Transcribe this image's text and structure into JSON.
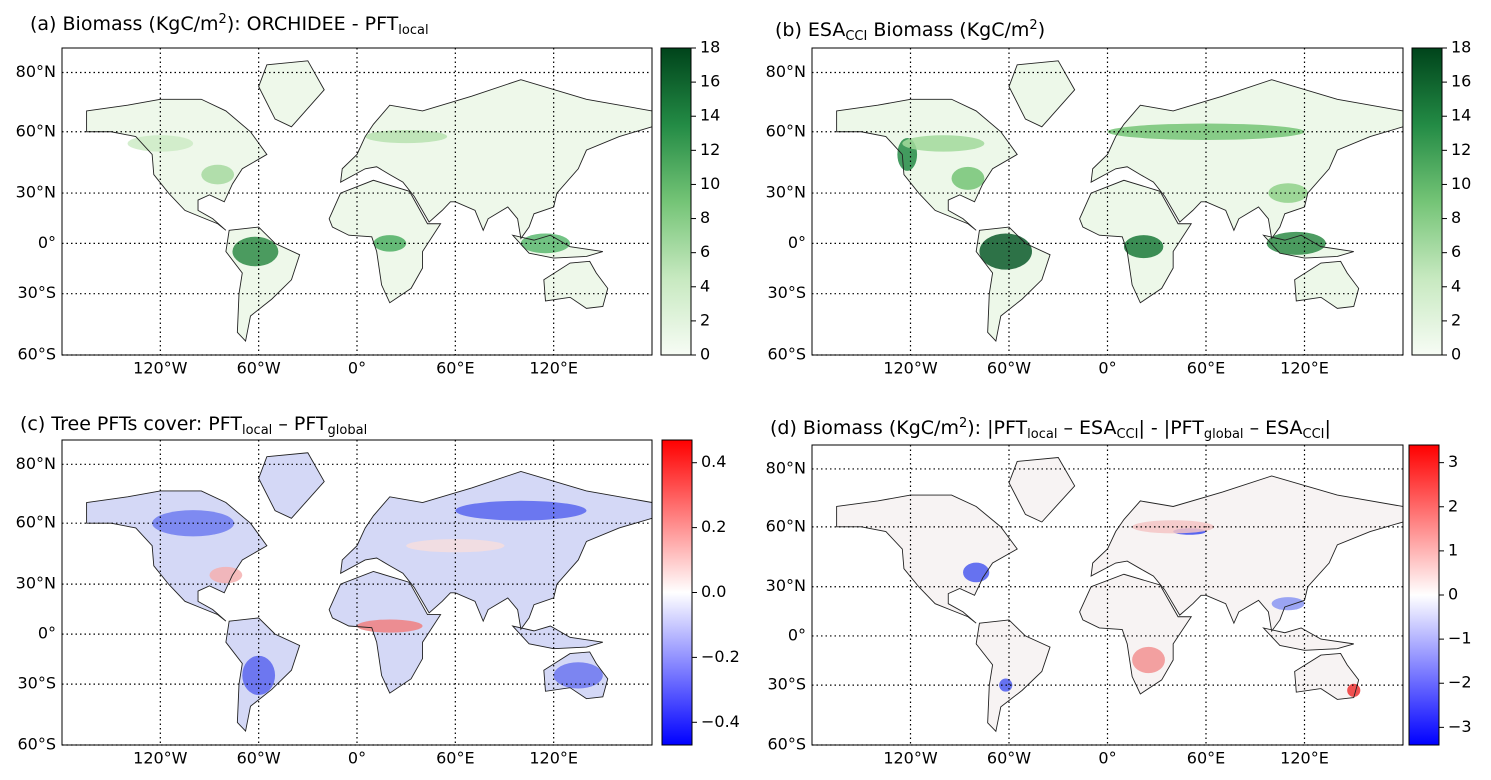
{
  "panels": [
    {
      "title": [
        "(a) Biomass (KgC/m",
        {
          "sup": "2"
        },
        "): ORCHIDEE - PFT",
        {
          "sub": "local"
        }
      ],
      "projection": "miller",
      "xlim": [
        -180,
        180
      ],
      "ylim": [
        -60,
        86
      ],
      "grid": true,
      "xticks": [
        {
          "value": -120,
          "label": "120°W"
        },
        {
          "value": -60,
          "label": "60°W"
        },
        {
          "value": 0,
          "label": "0°"
        },
        {
          "value": 60,
          "label": "60°E"
        },
        {
          "value": 120,
          "label": "120°E"
        }
      ],
      "yticks": [
        {
          "value": -60,
          "label": "60°S"
        },
        {
          "value": -30,
          "label": "30°S"
        },
        {
          "value": 0,
          "label": "0°"
        },
        {
          "value": 30,
          "label": "30°N"
        },
        {
          "value": 60,
          "label": "60°N"
        },
        {
          "value": 80,
          "label": "80°N"
        }
      ],
      "colorbar": {
        "colors": [
          "#f7fcf5",
          "#c7e9c0",
          "#74c476",
          "#238b45",
          "#00441b"
        ],
        "clim": [
          0,
          18
        ],
        "ticks": [
          0,
          2,
          4,
          6,
          8,
          10,
          12,
          14,
          16,
          18
        ]
      }
    },
    {
      "title": [
        "(b) ESA",
        {
          "sub": "CCI"
        },
        " Biomass (KgC/m",
        {
          "sup": "2"
        },
        ")"
      ],
      "projection": "miller",
      "xlim": [
        -180,
        180
      ],
      "ylim": [
        -60,
        86
      ],
      "grid": true,
      "xticks": [
        {
          "value": -120,
          "label": "120°W"
        },
        {
          "value": -60,
          "label": "60°W"
        },
        {
          "value": 0,
          "label": "0°"
        },
        {
          "value": 60,
          "label": "60°E"
        },
        {
          "value": 120,
          "label": "120°E"
        }
      ],
      "yticks": [
        {
          "value": -60,
          "label": "60°S"
        },
        {
          "value": -30,
          "label": "30°S"
        },
        {
          "value": 0,
          "label": "0°"
        },
        {
          "value": 30,
          "label": "30°N"
        },
        {
          "value": 60,
          "label": "60°N"
        },
        {
          "value": 80,
          "label": "80°N"
        }
      ],
      "colorbar": {
        "colors": [
          "#f7fcf5",
          "#c7e9c0",
          "#74c476",
          "#238b45",
          "#00441b"
        ],
        "clim": [
          0,
          18
        ],
        "ticks": [
          0,
          2,
          4,
          6,
          8,
          10,
          12,
          14,
          16,
          18
        ]
      }
    },
    {
      "title": [
        "(c) Tree PFTs cover: PFT",
        {
          "sub": "local"
        },
        " –  PFT",
        {
          "sub": "global"
        }
      ],
      "projection": "miller",
      "xlim": [
        -180,
        180
      ],
      "ylim": [
        -60,
        86
      ],
      "grid": true,
      "xticks": [
        {
          "value": -120,
          "label": "120°W"
        },
        {
          "value": -60,
          "label": "60°W"
        },
        {
          "value": 0,
          "label": "0°"
        },
        {
          "value": 60,
          "label": "60°E"
        },
        {
          "value": 120,
          "label": "120°E"
        }
      ],
      "yticks": [
        {
          "value": -60,
          "label": "60°S"
        },
        {
          "value": -30,
          "label": "30°S"
        },
        {
          "value": 0,
          "label": "0°"
        },
        {
          "value": 30,
          "label": "30°N"
        },
        {
          "value": 60,
          "label": "60°N"
        },
        {
          "value": 80,
          "label": "80°N"
        }
      ],
      "colorbar": {
        "colors": [
          "#0000ff",
          "#ffffff",
          "#ff0000"
        ],
        "clim": [
          -0.47,
          0.47
        ],
        "ticks": [
          {
            "value": -0.4,
            "label": "−0.4"
          },
          {
            "value": -0.2,
            "label": "−0.2"
          },
          {
            "value": 0,
            "label": "0.0"
          },
          0.2,
          0.4
        ]
      }
    },
    {
      "title": [
        "(d) Biomass (KgC/m",
        {
          "sup": "2"
        },
        "): |PFT",
        {
          "sub": "local"
        },
        " – ESA",
        {
          "sub": "CCI"
        },
        "| - |PFT",
        {
          "sub": "global"
        },
        " – ESA",
        {
          "sub": "CCI"
        },
        "|"
      ],
      "projection": "miller",
      "xlim": [
        -180,
        180
      ],
      "ylim": [
        -60,
        86
      ],
      "grid": true,
      "xticks": [
        {
          "value": -120,
          "label": "120°W"
        },
        {
          "value": -60,
          "label": "60°W"
        },
        {
          "value": 0,
          "label": "0°"
        },
        {
          "value": 60,
          "label": "60°E"
        },
        {
          "value": 120,
          "label": "120°E"
        }
      ],
      "yticks": [
        {
          "value": -60,
          "label": "60°S"
        },
        {
          "value": -30,
          "label": "30°S"
        },
        {
          "value": 0,
          "label": "0°"
        },
        {
          "value": 30,
          "label": "30°N"
        },
        {
          "value": 60,
          "label": "60°N"
        },
        {
          "value": 80,
          "label": "80°N"
        }
      ],
      "colorbar": {
        "colors": [
          "#0000ff",
          "#ffffff",
          "#ff0000"
        ],
        "clim": [
          -3.4,
          3.4
        ],
        "ticks": [
          {
            "value": -3,
            "label": "−3"
          },
          {
            "value": -2,
            "label": "−2"
          },
          {
            "value": -1,
            "label": "−1"
          },
          0,
          1,
          2,
          3
        ]
      }
    }
  ]
}
